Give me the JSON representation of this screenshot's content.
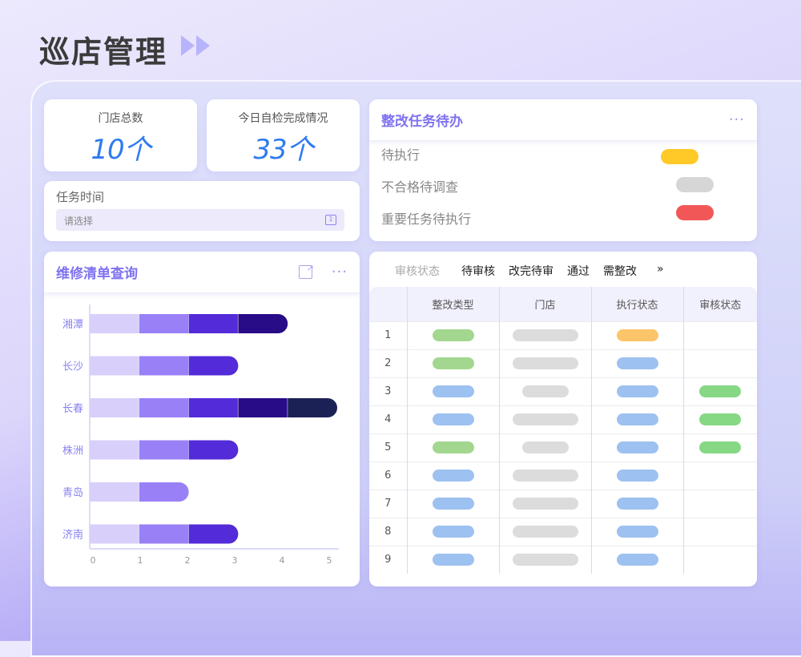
{
  "page": {
    "title": "巡店管理"
  },
  "stats": [
    {
      "label": "门店总数",
      "value": "10个"
    },
    {
      "label": "今日自检完成情况",
      "value": "33个"
    }
  ],
  "task_time": {
    "label": "任务时间",
    "placeholder": "请选择",
    "calendar_day": "1"
  },
  "todo": {
    "title": "整改任务待办",
    "more": "···",
    "items": [
      {
        "label": "待执行",
        "color": "#ffc928"
      },
      {
        "label": "不合格待调查",
        "color": "#d6d6d6"
      },
      {
        "label": "重要任务待执行",
        "color": "#f25757"
      }
    ]
  },
  "repair": {
    "title": "维修清单查询",
    "more": "···"
  },
  "chart_data": {
    "type": "bar",
    "orientation": "horizontal",
    "stacked": true,
    "categories": [
      "湘潭",
      "长沙",
      "长春",
      "株洲",
      "青岛",
      "济南"
    ],
    "series": [
      {
        "values": [
          1,
          1,
          1,
          1,
          1,
          1
        ],
        "color": "#d8cffb"
      },
      {
        "values": [
          1,
          1,
          1,
          1,
          1,
          1
        ],
        "color": "#9a80f7"
      },
      {
        "values": [
          1,
          1,
          1,
          1,
          0,
          1
        ],
        "color": "#532bd8"
      },
      {
        "values": [
          1,
          0,
          1,
          0,
          0,
          0
        ],
        "color": "#280b87"
      },
      {
        "values": [
          0,
          0,
          1,
          0,
          0,
          0
        ],
        "color": "#1c2155"
      }
    ],
    "xticks": [
      "0",
      "1",
      "2",
      "3",
      "4",
      "5"
    ],
    "xlim": [
      0,
      5
    ],
    "grid": false
  },
  "audit": {
    "filter_label": "审核状态",
    "tabs": [
      "待审核",
      "改完待审",
      "通过",
      "需整改"
    ],
    "more": "»",
    "columns": [
      "",
      "整改类型",
      "门店",
      "执行状态",
      "审核状态"
    ],
    "colors": {
      "green": "#a3d78f",
      "blue": "#9dc1f0",
      "gray": "#dcdcdc",
      "orange": "#fcc56a",
      "pass": "#86d884"
    },
    "rows": [
      {
        "index": "1",
        "type": "green",
        "store": "long",
        "exec": "orange",
        "audit": ""
      },
      {
        "index": "2",
        "type": "green",
        "store": "long",
        "exec": "blue",
        "audit": ""
      },
      {
        "index": "3",
        "type": "blue",
        "store": "short",
        "exec": "blue",
        "audit": "pass"
      },
      {
        "index": "4",
        "type": "blue",
        "store": "long",
        "exec": "blue",
        "audit": "pass"
      },
      {
        "index": "5",
        "type": "green",
        "store": "short",
        "exec": "blue",
        "audit": "pass"
      },
      {
        "index": "6",
        "type": "blue",
        "store": "long",
        "exec": "blue",
        "audit": ""
      },
      {
        "index": "7",
        "type": "blue",
        "store": "long",
        "exec": "blue",
        "audit": ""
      },
      {
        "index": "8",
        "type": "blue",
        "store": "long",
        "exec": "blue",
        "audit": ""
      },
      {
        "index": "9",
        "type": "blue",
        "store": "long",
        "exec": "blue",
        "audit": ""
      }
    ]
  }
}
